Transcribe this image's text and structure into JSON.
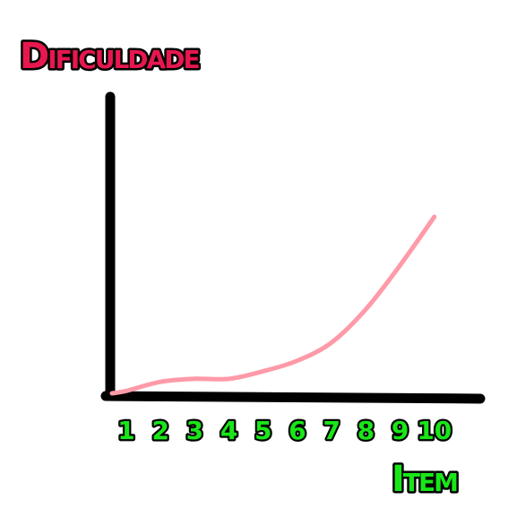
{
  "chart_data": {
    "type": "line",
    "title": "",
    "ylabel": "Dificuldade",
    "xlabel": "Item",
    "categories": [
      "1",
      "2",
      "3",
      "4",
      "5",
      "6",
      "7",
      "8",
      "9",
      "10"
    ],
    "series": [
      {
        "values": [
          0.5,
          3.5,
          4.5,
          4.5,
          7,
          10.5,
          16.5,
          27.5,
          42,
          58
        ]
      }
    ],
    "ylim": [
      0,
      100
    ],
    "grid": false,
    "colors": {
      "ylabel": "#e8174f",
      "xlabel": "#19e619",
      "ticks": "#19e619",
      "line": "#ff9aa8",
      "axes": "#000000"
    }
  }
}
